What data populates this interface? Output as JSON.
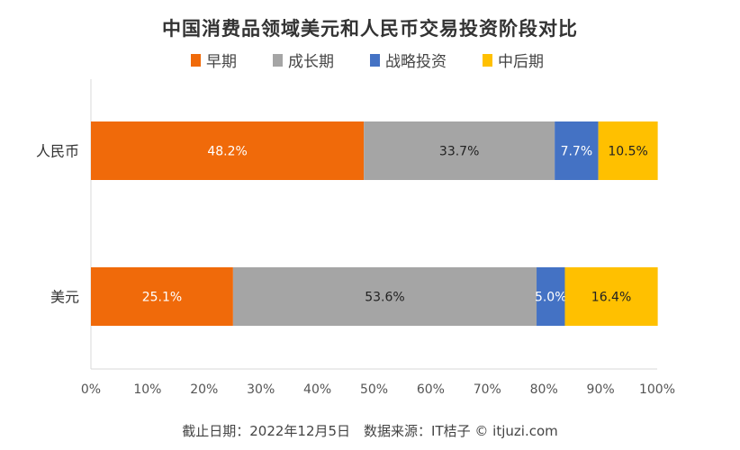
{
  "chart_data": {
    "type": "bar",
    "orientation": "horizontal",
    "stacked": "percent",
    "title": "中国消费品领域美元和人民币交易投资阶段对比",
    "categories": [
      "人民币",
      "美元"
    ],
    "series": [
      {
        "name": "早期",
        "color": "#F06A0A",
        "values": [
          48.2,
          25.1
        ],
        "labels": [
          "48.2%",
          "25.1%"
        ],
        "label_color": "#ffffff"
      },
      {
        "name": "成长期",
        "color": "#A5A5A5",
        "values": [
          33.7,
          53.6
        ],
        "labels": [
          "33.7%",
          "53.6%"
        ],
        "label_color": "#222222"
      },
      {
        "name": "战略投资",
        "color": "#4472C4",
        "values": [
          7.7,
          5.0
        ],
        "labels": [
          "7.7%",
          "5.0%"
        ],
        "label_color": "#ffffff"
      },
      {
        "name": "中后期",
        "color": "#FFC000",
        "values": [
          10.5,
          16.4
        ],
        "labels": [
          "10.5%",
          "16.4%"
        ],
        "label_color": "#222222"
      }
    ],
    "xlim": [
      0,
      100
    ],
    "xticks": [
      "0%",
      "10%",
      "20%",
      "30%",
      "40%",
      "50%",
      "60%",
      "70%",
      "80%",
      "90%",
      "100%"
    ],
    "legend": "top",
    "grid": false
  },
  "footer": "截止日期：2022年12月5日　数据来源：IT桔子 © itjuzi.com"
}
